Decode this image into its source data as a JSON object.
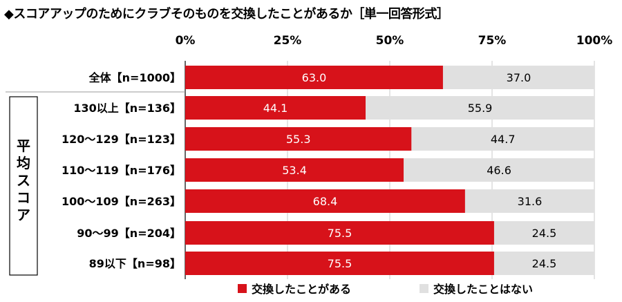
{
  "title": "◆スコアアップのためにクラブそのものを交換したことがあるか［単一回答形式］",
  "group_label": "平均スコア",
  "chart_data": {
    "type": "bar",
    "orientation": "horizontal",
    "stacked": true,
    "x_ticks": [
      "0%",
      "25%",
      "50%",
      "75%",
      "100%"
    ],
    "xlim": [
      0,
      100
    ],
    "grid": true,
    "legend_position": "bottom",
    "categories": [
      "全体【n=1000】",
      "130以上【n=136】",
      "120～129【n=123】",
      "110～119【n=176】",
      "100～109【n=263】",
      "90～99【n=204】",
      "89以下【n=98】"
    ],
    "series": [
      {
        "name": "交換したことがある",
        "color": "#d7121a",
        "label_color": "#ffffff",
        "values": [
          63.0,
          44.1,
          55.3,
          53.4,
          68.4,
          75.5,
          75.5
        ],
        "labels": [
          "63.0",
          "44.1",
          "55.3",
          "53.4",
          "68.4",
          "75.5",
          "75.5"
        ]
      },
      {
        "name": "交換したことはない",
        "color": "#e0e0e0",
        "label_color": "#000000",
        "values": [
          37.0,
          55.9,
          44.7,
          46.6,
          31.6,
          24.5,
          24.5
        ],
        "labels": [
          "37.0",
          "55.9",
          "44.7",
          "46.6",
          "31.6",
          "24.5",
          "24.5"
        ]
      }
    ]
  }
}
